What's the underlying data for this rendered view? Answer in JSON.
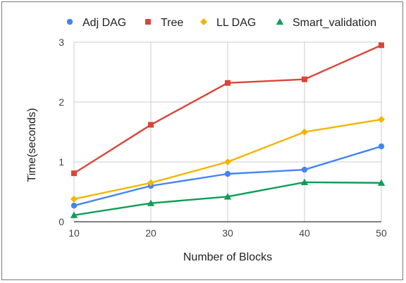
{
  "chart_data": {
    "type": "line",
    "xlabel": "Number of Blocks",
    "ylabel": "Time(seconds)",
    "x": [
      10,
      20,
      30,
      40,
      50
    ],
    "xlim": [
      10,
      50
    ],
    "ylim": [
      0,
      3
    ],
    "x_ticks": [
      "10",
      "20",
      "30",
      "40",
      "50"
    ],
    "y_ticks": [
      "0",
      "1",
      "2",
      "3"
    ],
    "grid": true,
    "legend_position": "top",
    "series": [
      {
        "name": "Adj DAG",
        "color": "#4285F4",
        "marker": "circle",
        "values": [
          0.27,
          0.6,
          0.8,
          0.87,
          1.26
        ]
      },
      {
        "name": "Tree",
        "color": "#DB4437",
        "marker": "square",
        "values": [
          0.81,
          1.62,
          2.32,
          2.38,
          2.95
        ]
      },
      {
        "name": "LL DAG",
        "color": "#F4B400",
        "marker": "diamond",
        "values": [
          0.38,
          0.65,
          1.0,
          1.5,
          1.71
        ]
      },
      {
        "name": "Smart_validation",
        "color": "#0F9D58",
        "marker": "triangle",
        "values": [
          0.11,
          0.31,
          0.42,
          0.66,
          0.65
        ]
      }
    ]
  }
}
